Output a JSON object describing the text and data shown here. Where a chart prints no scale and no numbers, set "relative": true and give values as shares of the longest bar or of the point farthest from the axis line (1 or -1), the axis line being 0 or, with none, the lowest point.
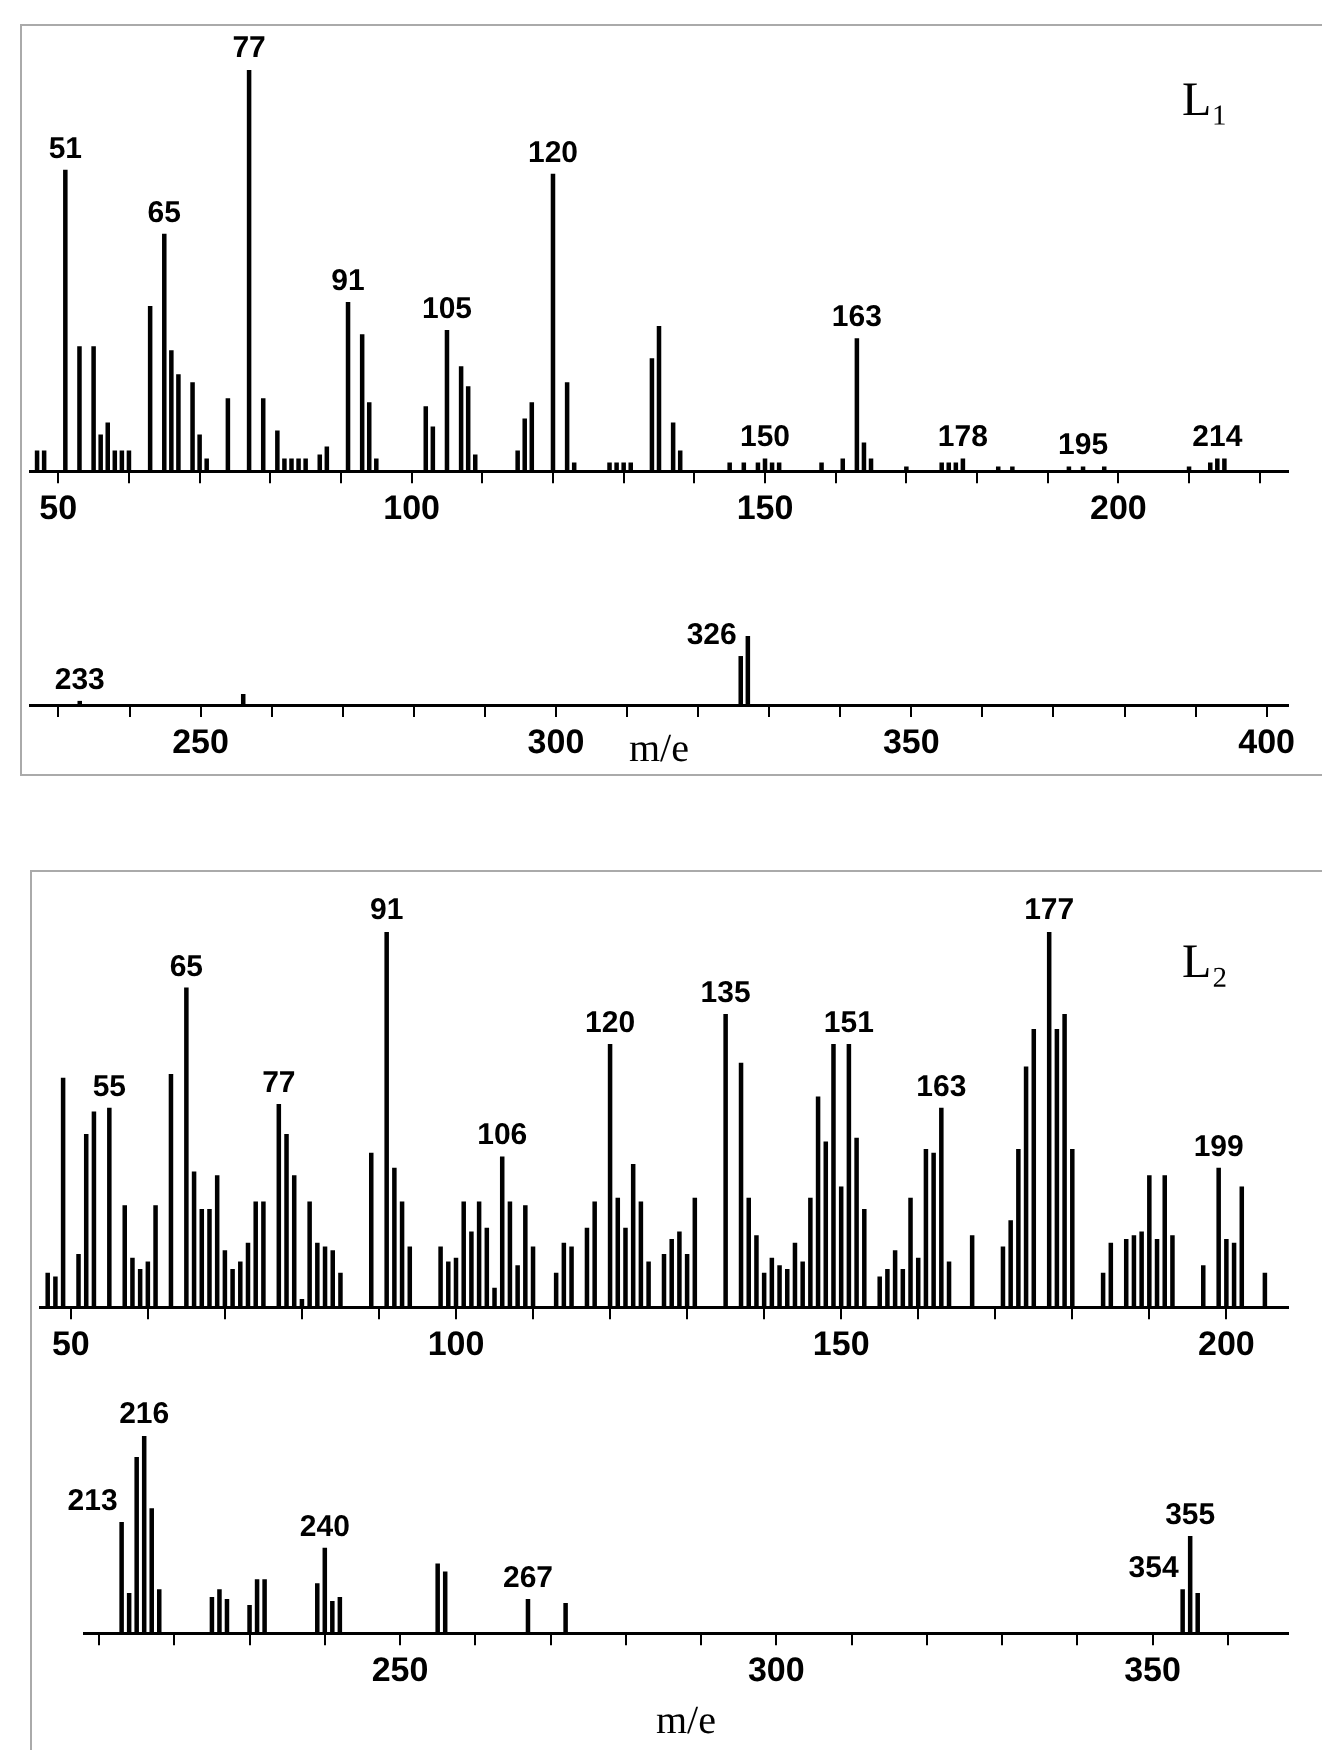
{
  "chart_data": [
    {
      "type": "bar",
      "relative": true,
      "color": "#000000",
      "annotations": [
        "L₁",
        {
          "text": "51",
          "x": 51,
          "y": 0.75
        },
        {
          "text": "65",
          "x": 65,
          "y": 0.59
        },
        {
          "text": "77",
          "x": 77,
          "y": 1
        },
        {
          "text": "91",
          "x": 91,
          "y": 0.42
        },
        {
          "text": "105",
          "x": 105,
          "y": 0.35
        },
        {
          "text": "120",
          "x": 120,
          "y": 0.74
        },
        {
          "text": "150",
          "x": 150,
          "y": 0.03
        },
        {
          "text": "163",
          "x": 163,
          "y": 0.33
        },
        {
          "text": "178",
          "x": 178,
          "y": 0.03
        },
        {
          "text": "195",
          "x": 195,
          "y": 0.01
        },
        {
          "text": "214",
          "x": 214,
          "y": 0.03
        }
      ],
      "x": [
        47,
        48,
        51,
        53,
        55,
        56,
        57,
        58,
        59,
        60,
        63,
        65,
        66,
        67,
        69,
        70,
        71,
        74,
        77,
        79,
        81,
        82,
        83,
        84,
        85,
        87,
        88,
        91,
        93,
        94,
        95,
        102,
        103,
        105,
        107,
        108,
        109,
        115,
        116,
        117,
        120,
        122,
        123,
        128,
        129,
        130,
        131,
        134,
        135,
        137,
        138,
        145,
        147,
        149,
        150,
        151,
        152,
        158,
        161,
        163,
        164,
        165,
        170,
        175,
        176,
        177,
        178,
        183,
        185,
        193,
        195,
        198,
        210,
        213,
        214,
        215
      ],
      "values": [
        0.05,
        0.05,
        0.75,
        0.31,
        0.31,
        0.09,
        0.12,
        0.05,
        0.05,
        0.05,
        0.41,
        0.59,
        0.3,
        0.24,
        0.22,
        0.09,
        0.03,
        0.18,
        1,
        0.18,
        0.1,
        0.03,
        0.03,
        0.03,
        0.03,
        0.04,
        0.06,
        0.42,
        0.34,
        0.17,
        0.03,
        0.16,
        0.11,
        0.35,
        0.26,
        0.21,
        0.04,
        0.05,
        0.13,
        0.17,
        0.74,
        0.22,
        0.02,
        0.02,
        0.02,
        0.02,
        0.02,
        0.28,
        0.36,
        0.12,
        0.05,
        0.02,
        0.02,
        0.02,
        0.03,
        0.02,
        0.02,
        0.02,
        0.03,
        0.33,
        0.07,
        0.03,
        0.01,
        0.02,
        0.02,
        0.02,
        0.03,
        0.01,
        0.01,
        0.01,
        0.01,
        0.01,
        0.01,
        0.02,
        0.03,
        0.03
      ],
      "xlim": [
        46,
        224
      ],
      "xticks": [
        50,
        {
          "value": 60,
          "label": null
        },
        {
          "value": 70,
          "label": null
        },
        {
          "value": 80,
          "label": null
        },
        {
          "value": 90,
          "label": null
        },
        100,
        {
          "value": 110,
          "label": null
        },
        {
          "value": 120,
          "label": null
        },
        {
          "value": 130,
          "label": null
        },
        {
          "value": 140,
          "label": null
        },
        150,
        {
          "value": 160,
          "label": null
        },
        {
          "value": 170,
          "label": null
        },
        {
          "value": 180,
          "label": null
        },
        {
          "value": 190,
          "label": null
        },
        200,
        {
          "value": 210,
          "label": null
        },
        {
          "value": 220,
          "label": null
        }
      ]
    },
    {
      "type": "bar",
      "relative": true,
      "color": "#000000",
      "xlabel": "m/e",
      "annotations": [
        {
          "text": "233",
          "x": 233,
          "y": 0.05
        },
        {
          "text": "326",
          "x": 326,
          "y": 0.7
        }
      ],
      "x": [
        233,
        256,
        326,
        327
      ],
      "values": [
        0.05,
        0.15,
        0.7,
        1
      ],
      "xlim": [
        226,
        403
      ],
      "xticks": [
        {
          "value": 230,
          "label": null
        },
        {
          "value": 240,
          "label": null
        },
        250,
        {
          "value": 260,
          "label": null
        },
        {
          "value": 270,
          "label": null
        },
        {
          "value": 280,
          "label": null
        },
        {
          "value": 290,
          "label": null
        },
        300,
        {
          "value": 310,
          "label": null
        },
        {
          "value": 320,
          "label": null
        },
        {
          "value": 330,
          "label": null
        },
        {
          "value": 340,
          "label": null
        },
        350,
        {
          "value": 360,
          "label": null
        },
        {
          "value": 370,
          "label": null
        },
        {
          "value": 380,
          "label": null
        },
        {
          "value": 390,
          "label": null
        },
        400
      ]
    },
    {
      "type": "bar",
      "relative": true,
      "color": "#000000",
      "annotations": [
        "L₂",
        {
          "text": "55",
          "x": 55,
          "y": 0.53
        },
        {
          "text": "65",
          "x": 65,
          "y": 0.85
        },
        {
          "text": "77",
          "x": 77,
          "y": 0.54
        },
        {
          "text": "91",
          "x": 91,
          "y": 1
        },
        {
          "text": "106",
          "x": 106,
          "y": 0.4
        },
        {
          "text": "120",
          "x": 120,
          "y": 0.7
        },
        {
          "text": "135",
          "x": 135,
          "y": 0.78
        },
        {
          "text": "151",
          "x": 151,
          "y": 0.7
        },
        {
          "text": "163",
          "x": 163,
          "y": 0.53
        },
        {
          "text": "177",
          "x": 177,
          "y": 1
        },
        {
          "text": "199",
          "x": 199,
          "y": 0.37
        }
      ],
      "x": [
        47,
        48,
        49,
        51,
        52,
        53,
        55,
        57,
        58,
        59,
        60,
        61,
        63,
        65,
        66,
        67,
        68,
        69,
        70,
        71,
        72,
        73,
        74,
        75,
        77,
        78,
        79,
        80,
        81,
        82,
        83,
        84,
        85,
        89,
        91,
        92,
        93,
        94,
        98,
        99,
        100,
        101,
        102,
        103,
        104,
        105,
        106,
        107,
        108,
        109,
        110,
        113,
        114,
        115,
        117,
        118,
        120,
        121,
        122,
        123,
        124,
        125,
        127,
        128,
        129,
        130,
        131,
        135,
        137,
        138,
        139,
        140,
        141,
        142,
        143,
        144,
        145,
        146,
        147,
        148,
        149,
        150,
        151,
        152,
        153,
        155,
        156,
        157,
        158,
        159,
        160,
        161,
        162,
        163,
        164,
        167,
        171,
        172,
        173,
        174,
        175,
        177,
        178,
        179,
        180,
        184,
        185,
        187,
        188,
        189,
        190,
        191,
        192,
        193,
        197,
        199,
        200,
        201,
        202,
        205
      ],
      "values": [
        0.09,
        0.08,
        0.61,
        0.14,
        0.46,
        0.52,
        0.53,
        0.27,
        0.13,
        0.1,
        0.12,
        0.27,
        0.62,
        0.85,
        0.36,
        0.26,
        0.26,
        0.35,
        0.15,
        0.1,
        0.12,
        0.17,
        0.28,
        0.28,
        0.54,
        0.46,
        0.35,
        0.02,
        0.28,
        0.17,
        0.16,
        0.15,
        0.09,
        0.41,
        1,
        0.37,
        0.28,
        0.16,
        0.16,
        0.12,
        0.13,
        0.28,
        0.2,
        0.28,
        0.21,
        0.05,
        0.4,
        0.28,
        0.11,
        0.27,
        0.16,
        0.09,
        0.17,
        0.16,
        0.21,
        0.28,
        0.7,
        0.29,
        0.21,
        0.38,
        0.28,
        0.12,
        0.14,
        0.18,
        0.2,
        0.14,
        0.29,
        0.78,
        0.65,
        0.29,
        0.19,
        0.09,
        0.13,
        0.11,
        0.1,
        0.17,
        0.12,
        0.29,
        0.56,
        0.44,
        0.7,
        0.32,
        0.7,
        0.45,
        0.26,
        0.08,
        0.1,
        0.15,
        0.1,
        0.29,
        0.13,
        0.42,
        0.41,
        0.53,
        0.12,
        0.19,
        0.16,
        0.23,
        0.42,
        0.64,
        0.74,
        1,
        0.74,
        0.78,
        0.42,
        0.09,
        0.17,
        0.18,
        0.19,
        0.2,
        0.35,
        0.18,
        0.35,
        0.19,
        0.11,
        0.37,
        0.18,
        0.17,
        0.32,
        0.09
      ],
      "xlim": [
        46,
        208
      ],
      "xticks": [
        50,
        {
          "value": 60,
          "label": null
        },
        {
          "value": 70,
          "label": null
        },
        {
          "value": 80,
          "label": null
        },
        {
          "value": 90,
          "label": null
        },
        100,
        {
          "value": 110,
          "label": null
        },
        {
          "value": 120,
          "label": null
        },
        {
          "value": 130,
          "label": null
        },
        {
          "value": 140,
          "label": null
        },
        150,
        {
          "value": 160,
          "label": null
        },
        {
          "value": 170,
          "label": null
        },
        {
          "value": 180,
          "label": null
        },
        {
          "value": 190,
          "label": null
        },
        200
      ]
    },
    {
      "type": "bar",
      "relative": true,
      "color": "#000000",
      "xlabel": "m/e",
      "annotations": [
        {
          "text": "213",
          "x": 213,
          "y": 0.56
        },
        {
          "text": "216",
          "x": 216,
          "y": 1
        },
        {
          "text": "240",
          "x": 240,
          "y": 0.43
        },
        {
          "text": "267",
          "x": 267,
          "y": 0.17
        },
        {
          "text": "355",
          "x": 355,
          "y": 0.49
        },
        {
          "text": "354",
          "x": 354,
          "y": 0.22
        }
      ],
      "x": [
        213,
        214,
        215,
        216,
        217,
        218,
        225,
        226,
        227,
        230,
        231,
        232,
        239,
        240,
        241,
        242,
        255,
        256,
        267,
        272,
        354,
        355,
        356
      ],
      "values": [
        0.56,
        0.2,
        0.89,
        1,
        0.63,
        0.22,
        0.18,
        0.22,
        0.17,
        0.14,
        0.27,
        0.27,
        0.25,
        0.43,
        0.16,
        0.18,
        0.35,
        0.31,
        0.17,
        0.15,
        0.22,
        0.49,
        0.2
      ],
      "xlim": [
        208,
        368
      ],
      "xticks": [
        {
          "value": 210,
          "label": null
        },
        {
          "value": 220,
          "label": null
        },
        {
          "value": 230,
          "label": null
        },
        {
          "value": 240,
          "label": null
        },
        250,
        {
          "value": 260,
          "label": null
        },
        {
          "value": 270,
          "label": null
        },
        {
          "value": 280,
          "label": null
        },
        {
          "value": 290,
          "label": null
        },
        300,
        {
          "value": 310,
          "label": null
        },
        {
          "value": 320,
          "label": null
        },
        {
          "value": 330,
          "label": null
        },
        {
          "value": 340,
          "label": null
        },
        350,
        {
          "value": 360,
          "label": null
        }
      ]
    }
  ]
}
